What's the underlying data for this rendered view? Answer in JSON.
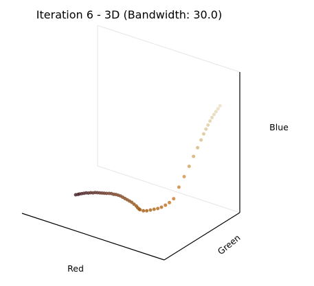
{
  "chart_data": {
    "type": "scatter",
    "projection": "3d",
    "title": "Iteration 6 - 3D (Bandwidth: 30.0)",
    "xlabel": "Red",
    "ylabel": "Green",
    "zlabel": "Blue",
    "xlim": [
      0,
      255
    ],
    "ylim": [
      0,
      255
    ],
    "zlim": [
      0,
      255
    ],
    "tick_labels_shown": false,
    "grid": false,
    "point_size": 2.5,
    "series": [
      {
        "segment": "dark-brown",
        "points": [
          [
            75,
            40,
            45
          ],
          [
            78,
            42,
            46
          ],
          [
            80,
            43,
            47
          ],
          [
            83,
            45,
            48
          ],
          [
            86,
            47,
            49
          ],
          [
            89,
            49,
            50
          ],
          [
            92,
            51,
            50
          ],
          [
            95,
            53,
            51
          ],
          [
            98,
            55,
            51
          ],
          [
            101,
            57,
            52
          ],
          [
            104,
            59,
            52
          ],
          [
            107,
            61,
            52
          ],
          [
            110,
            63,
            52
          ],
          [
            113,
            65,
            52
          ],
          [
            116,
            67,
            52
          ],
          [
            119,
            70,
            52
          ],
          [
            122,
            72,
            52
          ],
          [
            125,
            74,
            51
          ],
          [
            128,
            76,
            51
          ],
          [
            131,
            78,
            50
          ],
          [
            134,
            80,
            49
          ],
          [
            137,
            82,
            47
          ],
          [
            140,
            84,
            45
          ],
          [
            143,
            86,
            43
          ],
          [
            146,
            88,
            41
          ],
          [
            149,
            90,
            39
          ],
          [
            152,
            92,
            36
          ],
          [
            155,
            94,
            33
          ],
          [
            157,
            95,
            30
          ],
          [
            159,
            96,
            28
          ]
        ]
      },
      {
        "segment": "orange",
        "points": [
          [
            160,
            97,
            27
          ],
          [
            165,
            99,
            26
          ],
          [
            170,
            101,
            27
          ],
          [
            175,
            104,
            29
          ],
          [
            180,
            107,
            31
          ],
          [
            185,
            110,
            33
          ],
          [
            190,
            113,
            36
          ],
          [
            195,
            117,
            40
          ],
          [
            200,
            121,
            45
          ],
          [
            205,
            126,
            52
          ]
        ]
      },
      {
        "segment": "peach",
        "points": [
          [
            208,
            138,
            70
          ],
          [
            210,
            152,
            85
          ],
          [
            212,
            165,
            100
          ],
          [
            214,
            176,
            115
          ],
          [
            216,
            186,
            128
          ],
          [
            218,
            194,
            140
          ],
          [
            220,
            199,
            150
          ],
          [
            222,
            203,
            158
          ],
          [
            224,
            206,
            165
          ],
          [
            226,
            209,
            172
          ],
          [
            228,
            212,
            178
          ],
          [
            230,
            215,
            183
          ],
          [
            232,
            218,
            188
          ],
          [
            234,
            221,
            193
          ],
          [
            236,
            224,
            198
          ]
        ]
      }
    ]
  }
}
